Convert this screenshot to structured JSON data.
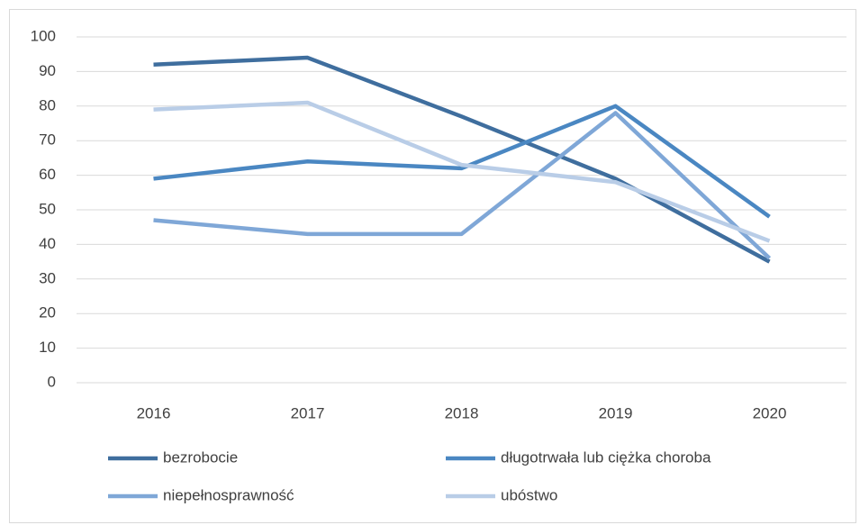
{
  "chart_data": {
    "type": "line",
    "categories": [
      "2016",
      "2017",
      "2018",
      "2019",
      "2020"
    ],
    "series": [
      {
        "name": "bezrobocie",
        "color": "#3f6e9e",
        "values": [
          92,
          94,
          77,
          59,
          35
        ]
      },
      {
        "name": "długotrwała lub ciężka choroba",
        "color": "#4a87c2",
        "values": [
          59,
          64,
          62,
          80,
          48
        ]
      },
      {
        "name": "niepełnosprawność",
        "color": "#7fa7d7",
        "values": [
          47,
          43,
          43,
          78,
          36
        ]
      },
      {
        "name": "ubóstwo",
        "color": "#b9cde7",
        "values": [
          79,
          81,
          63,
          58,
          41
        ]
      }
    ],
    "ylim": [
      0,
      100
    ],
    "yticks": [
      0,
      10,
      20,
      30,
      40,
      50,
      60,
      70,
      80,
      90,
      100
    ],
    "grid": true,
    "legend": "bottom"
  }
}
